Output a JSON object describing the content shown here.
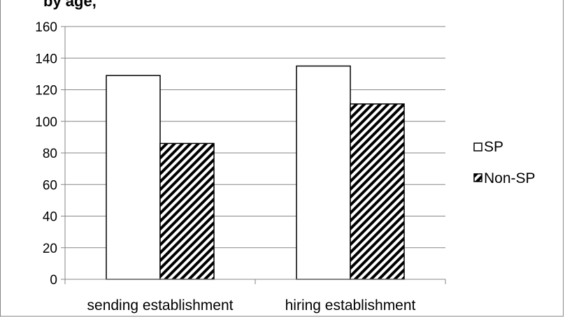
{
  "chart_data": {
    "type": "bar",
    "title": "by age, ",
    "categories": [
      "sending establishment",
      "hiring establishment"
    ],
    "series": [
      {
        "name": "SP",
        "values": [
          129,
          135
        ]
      },
      {
        "name": "Non-SP",
        "values": [
          86,
          111
        ]
      }
    ],
    "ylim": [
      0,
      160
    ],
    "yticks": [
      "0",
      "20",
      "40",
      "60",
      "80",
      "100",
      "120",
      "140",
      "160"
    ],
    "grid": true,
    "legend_position": "right",
    "colors": {
      "sp_fill": "#ffffff",
      "nonsp_pattern": "#000000",
      "grid": "#868686",
      "bar_stroke": "#000000"
    }
  }
}
